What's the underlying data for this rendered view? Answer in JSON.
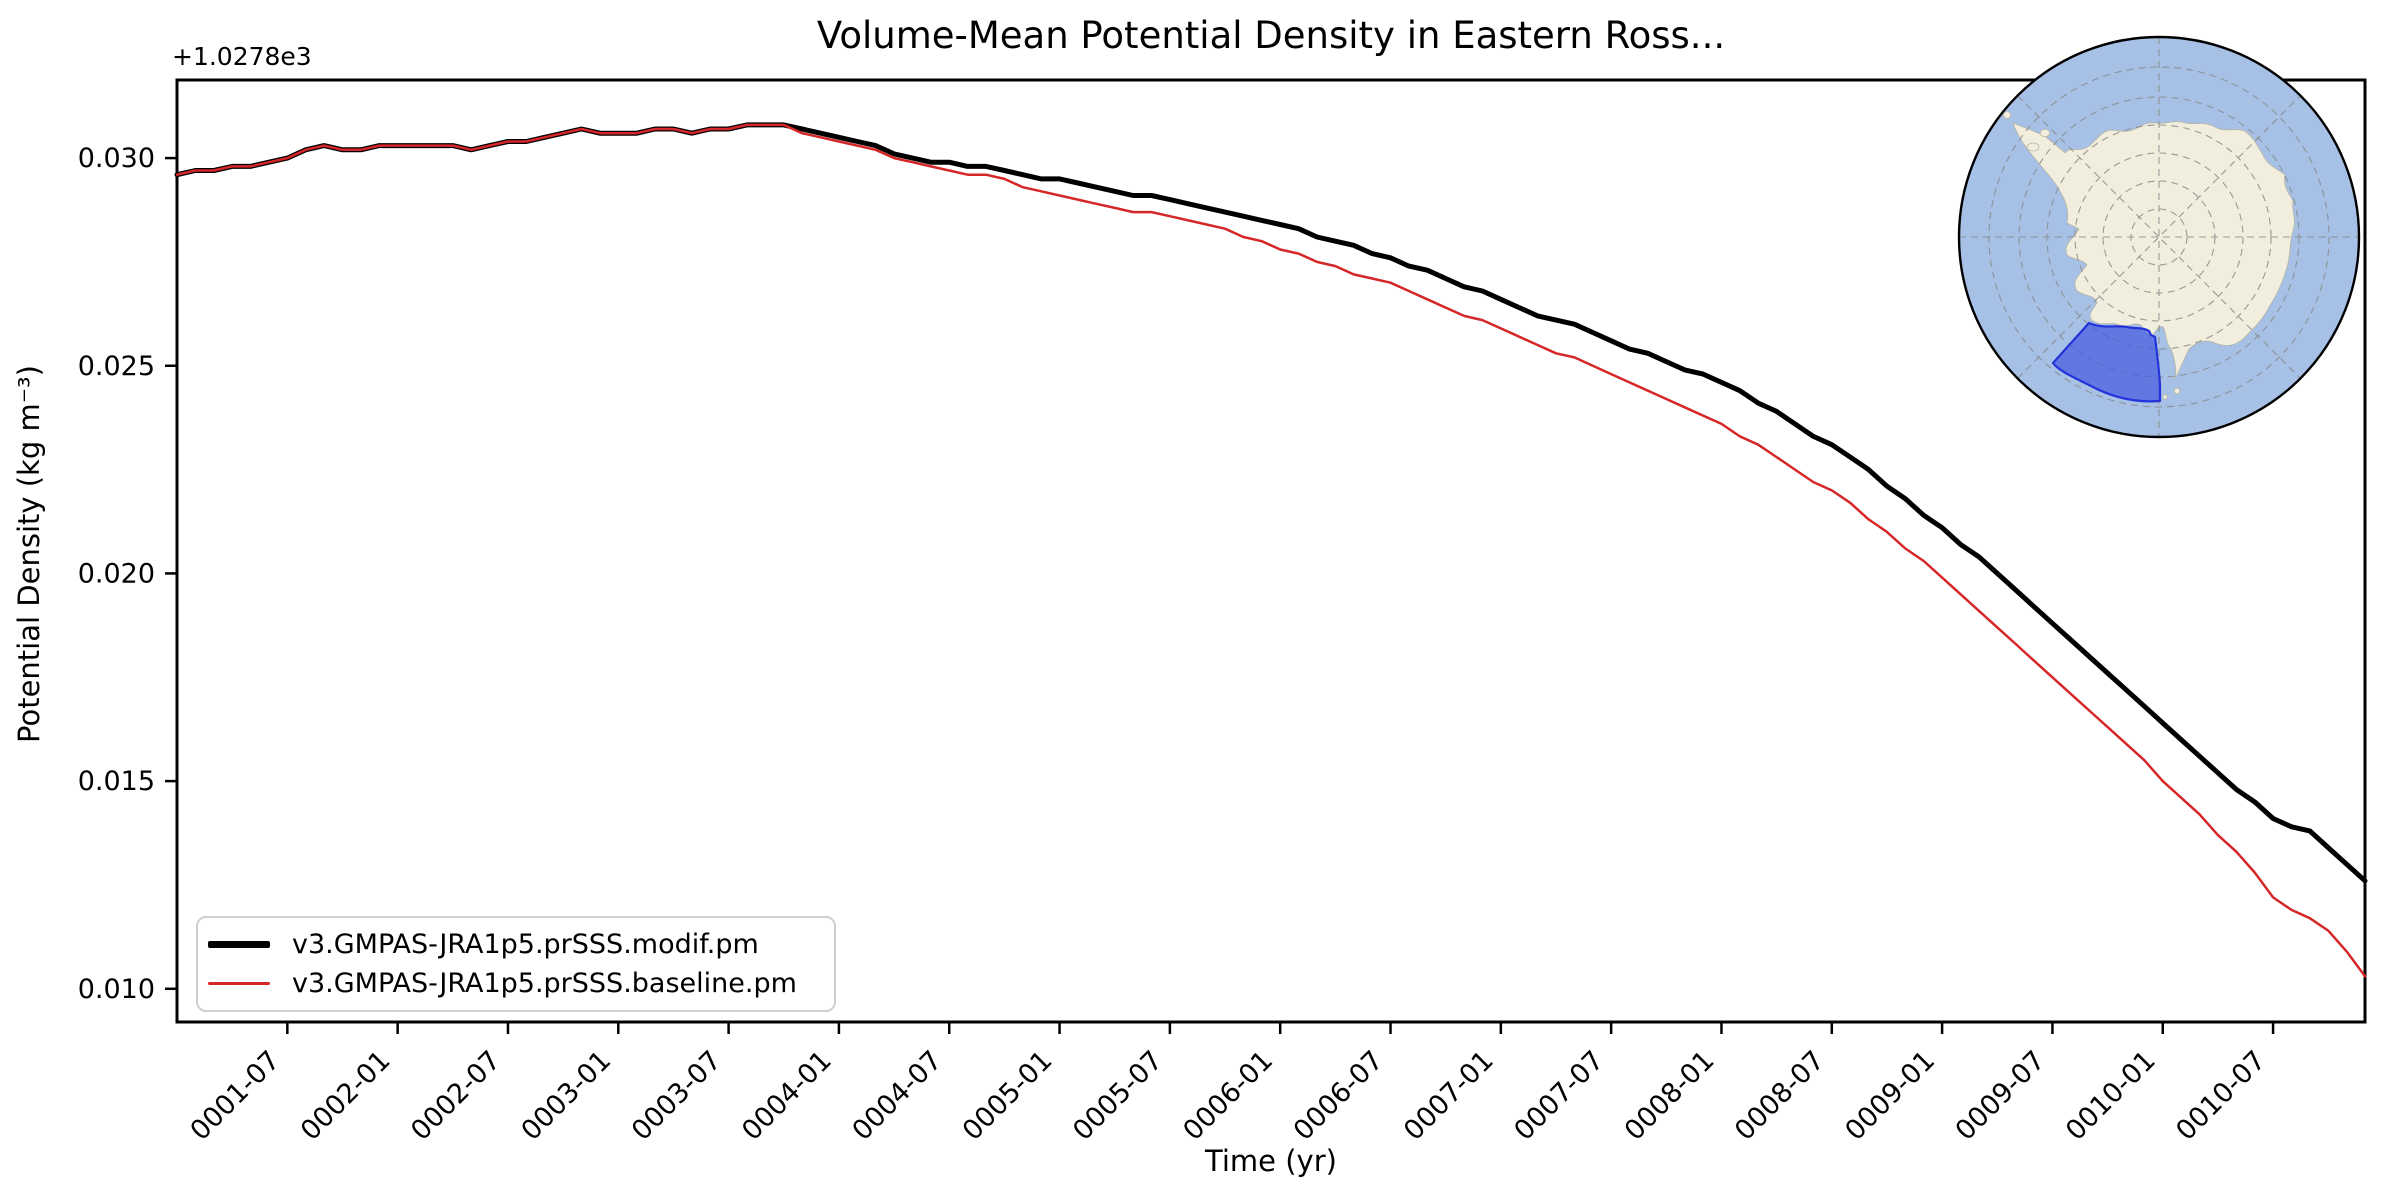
{
  "chart_data": {
    "type": "line",
    "title": "Volume-Mean Potential Density in Eastern Ross...",
    "y_offset_text": "+1.0278e3",
    "xlabel": "Time (yr)",
    "ylabel": "Potential Density (kg m⁻³)",
    "x_start": "0001-01",
    "x_end": "0010-12",
    "n_points": 120,
    "ylim": [
      0.0092,
      0.03188
    ],
    "grid": false,
    "legend_position": "lower left",
    "yticks": [
      {
        "value": 0.03,
        "label": "0.030"
      },
      {
        "value": 0.025,
        "label": "0.025"
      },
      {
        "value": 0.02,
        "label": "0.020"
      },
      {
        "value": 0.015,
        "label": "0.015"
      },
      {
        "value": 0.01,
        "label": "0.010"
      }
    ],
    "xticks": [
      {
        "month": 6,
        "label": "0001-07"
      },
      {
        "month": 12,
        "label": "0002-01"
      },
      {
        "month": 18,
        "label": "0002-07"
      },
      {
        "month": 24,
        "label": "0003-01"
      },
      {
        "month": 30,
        "label": "0003-07"
      },
      {
        "month": 36,
        "label": "0004-01"
      },
      {
        "month": 42,
        "label": "0004-07"
      },
      {
        "month": 48,
        "label": "0005-01"
      },
      {
        "month": 54,
        "label": "0005-07"
      },
      {
        "month": 60,
        "label": "0006-01"
      },
      {
        "month": 66,
        "label": "0006-07"
      },
      {
        "month": 72,
        "label": "0007-01"
      },
      {
        "month": 78,
        "label": "0007-07"
      },
      {
        "month": 84,
        "label": "0008-01"
      },
      {
        "month": 90,
        "label": "0008-07"
      },
      {
        "month": 96,
        "label": "0009-01"
      },
      {
        "month": 102,
        "label": "0009-07"
      },
      {
        "month": 108,
        "label": "0010-01"
      },
      {
        "month": 114,
        "label": "0010-07"
      }
    ],
    "series": [
      {
        "name": "v3.GMPAS-JRA1p5.prSSS.modif.pm",
        "color": "#000000",
        "line_width": 5,
        "values": [
          0.0296,
          0.0297,
          0.0297,
          0.0298,
          0.0298,
          0.0299,
          0.03,
          0.0302,
          0.0303,
          0.0302,
          0.0302,
          0.0303,
          0.0303,
          0.0303,
          0.0303,
          0.0303,
          0.0302,
          0.0303,
          0.0304,
          0.0304,
          0.0305,
          0.0306,
          0.0307,
          0.0306,
          0.0306,
          0.0306,
          0.0307,
          0.0307,
          0.0306,
          0.0307,
          0.0307,
          0.0308,
          0.0308,
          0.0308,
          0.0307,
          0.0306,
          0.0305,
          0.0304,
          0.0303,
          0.0301,
          0.03,
          0.0299,
          0.0299,
          0.0298,
          0.0298,
          0.0297,
          0.0296,
          0.0295,
          0.0295,
          0.0294,
          0.0293,
          0.0292,
          0.0291,
          0.0291,
          0.029,
          0.0289,
          0.0288,
          0.0287,
          0.0286,
          0.0285,
          0.0284,
          0.0283,
          0.0281,
          0.028,
          0.0279,
          0.0277,
          0.0276,
          0.0274,
          0.0273,
          0.0271,
          0.0269,
          0.0268,
          0.0266,
          0.0264,
          0.0262,
          0.0261,
          0.026,
          0.0258,
          0.0256,
          0.0254,
          0.0253,
          0.0251,
          0.0249,
          0.0248,
          0.0246,
          0.0244,
          0.0241,
          0.0239,
          0.0236,
          0.0233,
          0.0231,
          0.0228,
          0.0225,
          0.0221,
          0.0218,
          0.0214,
          0.0211,
          0.0207,
          0.0204,
          0.02,
          0.0196,
          0.0192,
          0.0188,
          0.0184,
          0.018,
          0.0176,
          0.0172,
          0.0168,
          0.0164,
          0.016,
          0.0156,
          0.0152,
          0.0148,
          0.0145,
          0.0141,
          0.0139,
          0.0138,
          0.0134,
          0.013,
          0.0126
        ]
      },
      {
        "name": "v3.GMPAS-JRA1p5.prSSS.baseline.pm",
        "color": "#d62728",
        "line_width": 2.5,
        "values": [
          0.0296,
          0.0297,
          0.0297,
          0.0298,
          0.0298,
          0.0299,
          0.03,
          0.0302,
          0.0303,
          0.0302,
          0.0302,
          0.0303,
          0.0303,
          0.0303,
          0.0303,
          0.0303,
          0.0302,
          0.0303,
          0.0304,
          0.0304,
          0.0305,
          0.0306,
          0.0307,
          0.0306,
          0.0306,
          0.0306,
          0.0307,
          0.0307,
          0.0306,
          0.0307,
          0.0307,
          0.0308,
          0.0308,
          0.0308,
          0.0306,
          0.0305,
          0.0304,
          0.0303,
          0.0302,
          0.03,
          0.0299,
          0.0298,
          0.0297,
          0.0296,
          0.0296,
          0.0295,
          0.0293,
          0.0292,
          0.0291,
          0.029,
          0.0289,
          0.0288,
          0.0287,
          0.0287,
          0.0286,
          0.0285,
          0.0284,
          0.0283,
          0.0281,
          0.028,
          0.0278,
          0.0277,
          0.0275,
          0.0274,
          0.0272,
          0.0271,
          0.027,
          0.0268,
          0.0266,
          0.0264,
          0.0262,
          0.0261,
          0.0259,
          0.0257,
          0.0255,
          0.0253,
          0.0252,
          0.025,
          0.0248,
          0.0246,
          0.0244,
          0.0242,
          0.024,
          0.0238,
          0.0236,
          0.0233,
          0.0231,
          0.0228,
          0.0225,
          0.0222,
          0.022,
          0.0217,
          0.0213,
          0.021,
          0.0206,
          0.0203,
          0.0199,
          0.0195,
          0.0191,
          0.0187,
          0.0183,
          0.0179,
          0.0175,
          0.0171,
          0.0167,
          0.0163,
          0.0159,
          0.0155,
          0.015,
          0.0146,
          0.0142,
          0.0137,
          0.0133,
          0.0128,
          0.0122,
          0.0119,
          0.0117,
          0.0114,
          0.0109,
          0.0103
        ]
      }
    ]
  },
  "legend": {
    "items": [
      {
        "label": "v3.GMPAS-JRA1p5.prSSS.modif.pm",
        "color": "#000000",
        "thickness": 7
      },
      {
        "label": "v3.GMPAS-JRA1p5.prSSS.baseline.pm",
        "color": "#d62728",
        "thickness": 3
      }
    ]
  },
  "inset_map": {
    "description": "south-polar-stereographic-locator-map",
    "ocean_color": "#a6c0e6",
    "land_color": "#f1eedd",
    "graticule_color": "#8a8a8a",
    "border_color": "#000000",
    "region_fill": "#4156e0",
    "region_stroke": "#2433d9",
    "highlighted_region": "Eastern Ross Sea"
  }
}
